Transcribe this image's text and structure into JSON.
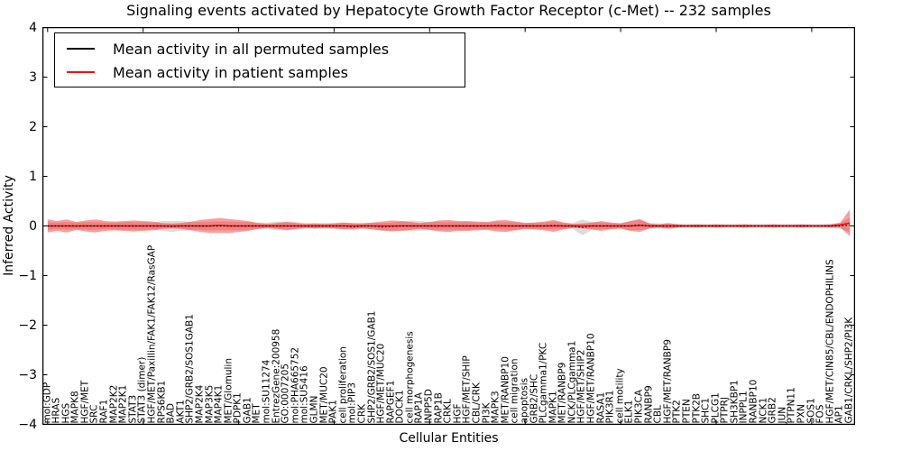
{
  "title": "Signaling events activated by Hepatocyte Growth Factor Receptor (c-Met) -- 232 samples",
  "axes": {
    "ylabel": "Inferred Activity",
    "xlabel": "Cellular Entities",
    "yticks": [
      "4",
      "3",
      "2",
      "1",
      "0",
      "−1",
      "−2",
      "−3",
      "−4"
    ]
  },
  "legend": {
    "entries": [
      {
        "label": "Mean activity in all permuted samples",
        "color": "#000000"
      },
      {
        "label": "Mean activity in patient samples",
        "color": "#ff0000"
      }
    ]
  },
  "colors": {
    "patient_line": "#ff0000",
    "permuted_line": "#000000",
    "patient_band": "rgba(255,0,0,0.39)",
    "permuted_band": "rgba(128,128,128,0.28)",
    "frame": "#000000"
  },
  "chart_data": {
    "type": "area",
    "title": "Signaling events activated by Hepatocyte Growth Factor Receptor (c-Met) -- 232 samples",
    "xlabel": "Cellular Entities",
    "ylabel": "Inferred Activity",
    "ylim": [
      -4,
      4
    ],
    "ytick_values": [
      4,
      3,
      2,
      1,
      0,
      -1,
      -2,
      -3,
      -4
    ],
    "xtick_step": 10,
    "grid": false,
    "legend_position": "upper left",
    "categories": [
      "mol:GDP",
      "HRAS",
      "HGS",
      "MAPK8",
      "HGF/MET",
      "SRC",
      "RAF1",
      "MAP2K2",
      "MAP2K1",
      "STAT3",
      "STAT3 (dimer)",
      "HGF/MET/Paxillin/FAK1/FAK12/RasGAP",
      "RPS6KB1",
      "BAD",
      "AKT1",
      "SHP2/GRB2/SOS1GAB1",
      "MAP2K4",
      "MAP3K5",
      "MAP4K1",
      "MET/Glomulin",
      "PDPK1",
      "GAB1",
      "MET",
      "mol:SU11274",
      "EntrezGene:200958",
      "GO:0007205",
      "mol:PHA665752",
      "mol:SU5416",
      "GLMN",
      "MET/MUC20",
      "PAK1",
      "cell proliferation",
      "mol:PIP3",
      "CRK",
      "SHP2/GRB2/SOS1/GAB1",
      "HGF/MET/MUC20",
      "RAPGEF1",
      "DOCK1",
      "cell morphogenesis",
      "RAP1A",
      "INPP5D",
      "RAP1B",
      "CRKL",
      "HGF",
      "HGF/MET/SHIP",
      "CBL/CRK",
      "PI3K",
      "MAPK3",
      "MET/RANBP10",
      "cell migration",
      "apoptosis",
      "GRB2/SHC",
      "PLCgamma1/PKC",
      "MAPK1",
      "MET/RANBP9",
      "NCK/PLCgamma1",
      "HGF/MET/SHIP2",
      "HGF/MET/RANBP10",
      "RASA1",
      "PIK3R1",
      "cell motility",
      "ELK1",
      "PIK3CA",
      "RANBP9",
      "CBL",
      "HGF/MET/RANBP9",
      "PTK2",
      "PTEN",
      "PTK2B",
      "SHC1",
      "PLCG1",
      "PTPRJ",
      "SH3KBP1",
      "INPPL1",
      "RANBP10",
      "NCK1",
      "GRB2",
      "JUN",
      "PTPN11",
      "PXN",
      "SOS1",
      "FOS",
      "HGF/MET/CIN85/CBL/ENDOPHILINS",
      "AP1",
      "GAB1/CRKL/SHP2/PI3K"
    ],
    "series": [
      {
        "name": "Mean activity in all permuted samples",
        "type": "line",
        "style": "dotted",
        "color": "#000000",
        "values": [
          0,
          0,
          0,
          0,
          0,
          0,
          0,
          0,
          0,
          0,
          0,
          0,
          0,
          -0.01,
          0,
          0,
          0,
          0,
          0,
          0,
          0,
          0,
          0,
          0,
          0,
          0,
          0,
          0,
          0,
          0,
          0,
          0,
          -0.02,
          0,
          0,
          -0.02,
          -0.01,
          0,
          0,
          0,
          0,
          0,
          0,
          0,
          0,
          0,
          0,
          0.01,
          0,
          0,
          0,
          0,
          0,
          0.01,
          0,
          0,
          -0.03,
          0,
          0,
          0,
          0,
          0,
          0.02,
          0,
          0,
          0,
          0,
          0,
          0,
          0,
          0,
          0,
          0,
          0,
          0,
          0,
          0,
          0,
          0,
          0,
          0,
          0,
          0,
          0,
          0.02
        ]
      },
      {
        "name": "Mean activity in patient samples",
        "type": "line",
        "style": "solid",
        "color": "#ff0000",
        "values": [
          0,
          0,
          0,
          0,
          0,
          0,
          0,
          0,
          0,
          0,
          0,
          0,
          0,
          0,
          0,
          0,
          0,
          0,
          0.01,
          0,
          0,
          0,
          0,
          0,
          0,
          0,
          0,
          0,
          0,
          0,
          0,
          0,
          0,
          0,
          0,
          0,
          0,
          0,
          0,
          0,
          0,
          0,
          0,
          0,
          0,
          0,
          0,
          0,
          0,
          0,
          0,
          0,
          0,
          0,
          0,
          0,
          0,
          0,
          0,
          0,
          0,
          0,
          0.01,
          0,
          0,
          0,
          0,
          0,
          0,
          0,
          0,
          0,
          0,
          0,
          0,
          0,
          0,
          0,
          0,
          0,
          0,
          0,
          0,
          0.02,
          0.06
        ]
      },
      {
        "name": "permuted samples band half-width",
        "type": "band",
        "color": "rgba(128,128,128,0.28)",
        "values": [
          0.08,
          0.07,
          0.08,
          0.07,
          0.08,
          0.08,
          0.07,
          0.07,
          0.08,
          0.08,
          0.08,
          0.07,
          0.1,
          0.11,
          0.1,
          0.08,
          0.08,
          0.09,
          0.09,
          0.09,
          0.08,
          0.08,
          0.07,
          0.07,
          0.09,
          0.09,
          0.08,
          0.06,
          0.06,
          0.06,
          0.06,
          0.07,
          0.07,
          0.06,
          0.07,
          0.08,
          0.08,
          0.09,
          0.11,
          0.1,
          0.08,
          0.08,
          0.08,
          0.08,
          0.08,
          0.07,
          0.07,
          0.08,
          0.08,
          0.08,
          0.07,
          0.07,
          0.07,
          0.08,
          0.07,
          0.06,
          0.16,
          0.08,
          0.07,
          0.06,
          0.06,
          0.09,
          0.1,
          0.06,
          0.05,
          0.05,
          0.04,
          0.04,
          0.04,
          0.04,
          0.04,
          0.04,
          0.04,
          0.04,
          0.04,
          0.04,
          0.04,
          0.04,
          0.04,
          0.04,
          0.04,
          0.04,
          0.04,
          0.06,
          0.15
        ]
      },
      {
        "name": "patient samples band half-width",
        "type": "band",
        "color": "rgba(255,0,0,0.39)",
        "values": [
          0.13,
          0.1,
          0.13,
          0.08,
          0.11,
          0.13,
          0.1,
          0.09,
          0.1,
          0.11,
          0.1,
          0.09,
          0.06,
          0.05,
          0.06,
          0.09,
          0.12,
          0.14,
          0.15,
          0.14,
          0.12,
          0.1,
          0.06,
          0.04,
          0.06,
          0.08,
          0.06,
          0.04,
          0.05,
          0.04,
          0.05,
          0.07,
          0.06,
          0.05,
          0.07,
          0.09,
          0.11,
          0.1,
          0.08,
          0.06,
          0.08,
          0.11,
          0.12,
          0.1,
          0.1,
          0.09,
          0.08,
          0.11,
          0.12,
          0.09,
          0.06,
          0.07,
          0.09,
          0.12,
          0.07,
          0.04,
          0.05,
          0.07,
          0.1,
          0.07,
          0.05,
          0.1,
          0.13,
          0.05,
          0.03,
          0.06,
          0.03,
          0.02,
          0.03,
          0.02,
          0.03,
          0.02,
          0.02,
          0.03,
          0.02,
          0.02,
          0.03,
          0.02,
          0.02,
          0.03,
          0.02,
          0.02,
          0.03,
          0.05,
          0.27
        ]
      }
    ]
  }
}
